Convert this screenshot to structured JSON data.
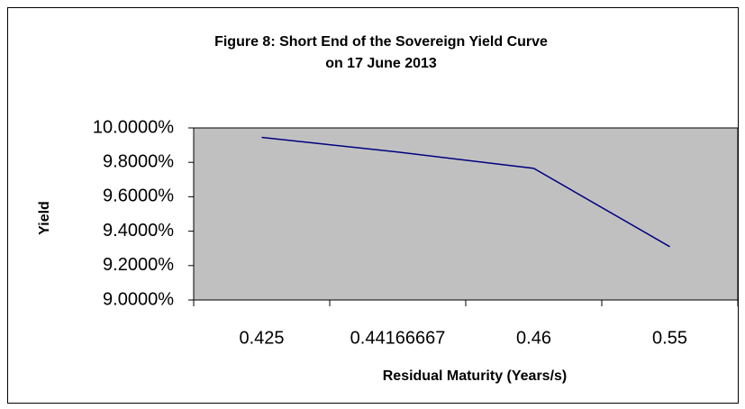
{
  "chart_data": {
    "type": "line",
    "title": [
      "Figure 8: Short End of the Sovereign Yield Curve",
      "on 17 June 2013"
    ],
    "x_label": "Residual Maturity (Years/s)",
    "y_label": "Yield",
    "categories": [
      "0.425",
      "0.44166667",
      "0.46",
      "0.55"
    ],
    "series": [
      {
        "name": "Yield",
        "color": "#000080",
        "values": [
          9.945,
          9.86,
          9.765,
          9.31
        ]
      }
    ],
    "ylim": [
      9,
      10
    ],
    "yticks": [
      {
        "value": 9,
        "label": "9.0000%"
      },
      {
        "value": 9.2,
        "label": "9.2000%"
      },
      {
        "value": 9.4,
        "label": "9.4000%"
      },
      {
        "value": 9.6,
        "label": "9.6000%"
      },
      {
        "value": 9.8,
        "label": "9.8000%"
      },
      {
        "value": 10,
        "label": "10.0000%"
      }
    ],
    "plot_background": "#c0c0c0"
  }
}
